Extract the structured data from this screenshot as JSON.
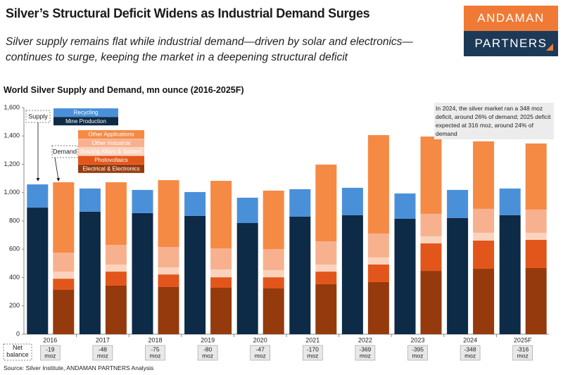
{
  "chart_data": {
    "type": "stacked_bar",
    "title": "Silver’s Structural Deficit Widens as Industrial Demand Surges",
    "subtitle": "Silver supply remains flat while industrial demand—driven by solar and electronics—continues to surge, keeping the market in a deepening structural deficit",
    "chart_title": "World Silver Supply and Demand, mn ounce (2016-2025F)",
    "categories": [
      "2016",
      "2017",
      "2018",
      "2019",
      "2020",
      "2021",
      "2022",
      "2023",
      "2024",
      "2025F"
    ],
    "stacks": [
      "Supply",
      "Demand"
    ],
    "series": [
      {
        "name": "Mine Production",
        "color": "#0d2a46",
        "stack": 0,
        "values": [
          894,
          865,
          855,
          835,
          785,
          830,
          840,
          815,
          820,
          840
        ]
      },
      {
        "name": "Recycling",
        "color": "#4a90d9",
        "stack": 0,
        "values": [
          164,
          164,
          164,
          169,
          179,
          194,
          194,
          179,
          199,
          189
        ]
      },
      {
        "name": "Electrical & Electronics",
        "color": "#953a0c",
        "stack": 1,
        "values": [
          313,
          343,
          333,
          328,
          323,
          353,
          368,
          447,
          462,
          467
        ]
      },
      {
        "name": "Photovoltaics",
        "color": "#e2561b",
        "stack": 1,
        "values": [
          79,
          99,
          89,
          74,
          79,
          89,
          124,
          194,
          199,
          199
        ]
      },
      {
        "name": "Brazing Alloys & Solders",
        "color": "#fbd3bd",
        "stack": 1,
        "values": [
          50,
          50,
          50,
          55,
          50,
          50,
          50,
          50,
          55,
          50
        ]
      },
      {
        "name": "Other Industrial",
        "color": "#f8b18e",
        "stack": 1,
        "values": [
          134,
          139,
          144,
          149,
          149,
          164,
          169,
          159,
          169,
          164
        ]
      },
      {
        "name": "Other Applications",
        "color": "#f58a45",
        "stack": 1,
        "values": [
          497,
          442,
          472,
          477,
          413,
          542,
          695,
          546,
          477,
          467
        ]
      }
    ],
    "ylim": [
      0,
      1600
    ],
    "yticks": [
      0,
      200,
      400,
      600,
      800,
      {
        "value": 1000,
        "label": "1,000"
      },
      {
        "value": 1200,
        "label": "1,200"
      },
      {
        "value": 1400,
        "label": "1,400"
      },
      {
        "value": 1600,
        "label": "1,600"
      }
    ],
    "grid": false,
    "annotation": "In 2024, the silver market ran a 348 moz deficit, around 26% of demand; 2025 deficit expected at 316 moz, around 24% of demand",
    "net_balance": {
      "label": "Net balance",
      "unit": "moz",
      "values": [
        -19,
        -48,
        -75,
        -80,
        -47,
        -170,
        -369,
        -395,
        -348,
        -316
      ]
    }
  },
  "logo": [
    "ANDAMAN",
    "PARTNERS"
  ],
  "source": "Source: Silver Institute, ANDAMAN PARTNERS Analysis"
}
